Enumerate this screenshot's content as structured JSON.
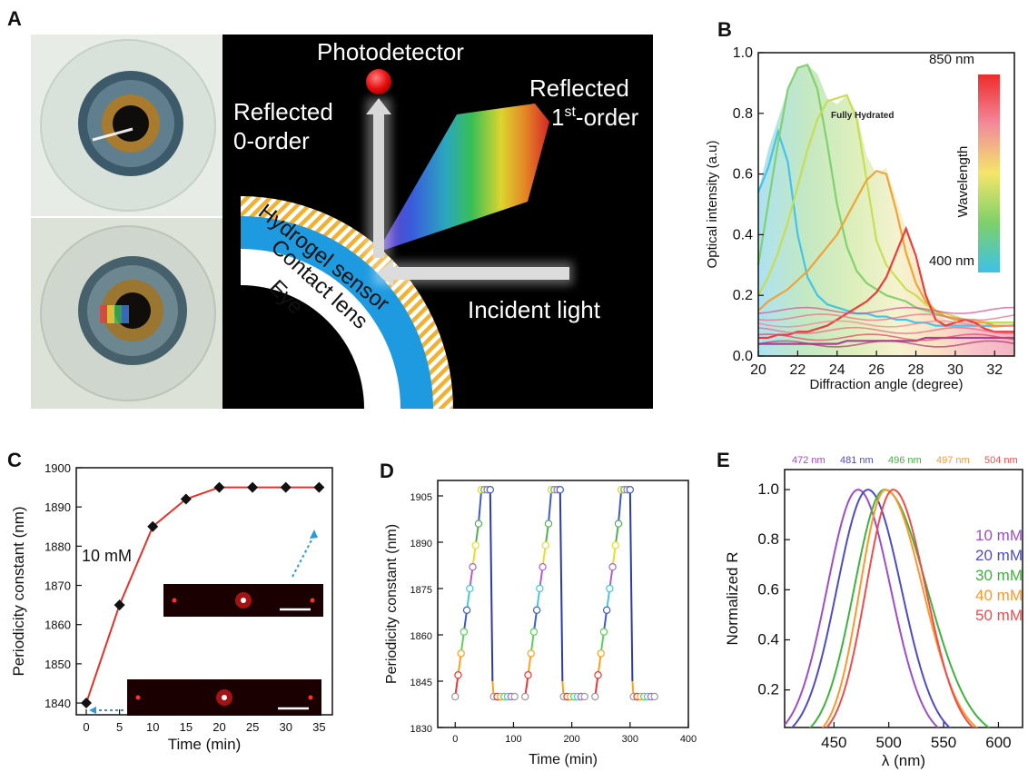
{
  "panels": {
    "a": "A",
    "b": "B",
    "c": "C",
    "d": "D",
    "e": "E"
  },
  "diagram_a": {
    "photodetector": "Photodetector",
    "reflected0_line1": "Reflected",
    "reflected0_line2": "0-order",
    "reflected1_line1": "Reflected",
    "reflected1_base": "1",
    "reflected1_sup": "st",
    "reflected1_tail": "-order",
    "incident": "Incident light",
    "hydrogel": "Hydrogel sensor",
    "contact": "Contact lens",
    "eye": "Eye"
  },
  "chart_data": [
    {
      "id": "B",
      "type": "line",
      "xlabel": "Diffraction angle (degree)",
      "ylabel": "Optical intensity (a.u)",
      "xlim": [
        20,
        33
      ],
      "ylim": [
        0.0,
        1.0
      ],
      "xticks": [
        20,
        22,
        24,
        26,
        28,
        30,
        32
      ],
      "yticks": [
        0.0,
        0.2,
        0.4,
        0.6,
        0.8,
        1.0
      ],
      "annotation": "Fully Hydrated",
      "colorbar": {
        "title": "Wavelength",
        "top_label": "850 nm",
        "bottom_label": "400 nm",
        "colors": [
          "#ef2b2b",
          "#f28a9a",
          "#f3e66a",
          "#7dd06a",
          "#3dc2e8"
        ]
      },
      "envelope": {
        "x": [
          20,
          20.5,
          21,
          21.5,
          22,
          22.5,
          23,
          23.5,
          24,
          24.5,
          25,
          25.5,
          26,
          26.5,
          27,
          27.5,
          28,
          28.5,
          29,
          29.5,
          30,
          30.5,
          31,
          31.5,
          32,
          32.5,
          33
        ],
        "y": [
          0.54,
          0.68,
          0.78,
          0.88,
          0.95,
          0.96,
          0.93,
          0.85,
          0.83,
          0.86,
          0.8,
          0.66,
          0.6,
          0.62,
          0.52,
          0.42,
          0.31,
          0.21,
          0.15,
          0.12,
          0.11,
          0.12,
          0.11,
          0.09,
          0.08,
          0.08,
          0.08
        ]
      },
      "spectra": [
        {
          "color": "#3dc2e8",
          "y": [
            0.54,
            0.62,
            0.74,
            0.64,
            0.4,
            0.26,
            0.2,
            0.17,
            0.16,
            0.15,
            0.14,
            0.14,
            0.13,
            0.13,
            0.12,
            0.12,
            0.11,
            0.11,
            0.1,
            0.1,
            0.1,
            0.1,
            0.1,
            0.1,
            0.1,
            0.1,
            0.1
          ]
        },
        {
          "color": "#7dd06a",
          "y": [
            0.3,
            0.5,
            0.7,
            0.88,
            0.95,
            0.96,
            0.88,
            0.7,
            0.5,
            0.36,
            0.28,
            0.24,
            0.22,
            0.2,
            0.19,
            0.18,
            0.16,
            0.15,
            0.14,
            0.13,
            0.12,
            0.12,
            0.12,
            0.11,
            0.11,
            0.11,
            0.11
          ]
        },
        {
          "color": "#c7dc4d",
          "y": [
            0.2,
            0.26,
            0.34,
            0.44,
            0.56,
            0.68,
            0.78,
            0.84,
            0.85,
            0.86,
            0.78,
            0.58,
            0.38,
            0.3,
            0.26,
            0.22,
            0.2,
            0.17,
            0.15,
            0.14,
            0.13,
            0.12,
            0.12,
            0.11,
            0.11,
            0.11,
            0.11
          ]
        },
        {
          "color": "#f0a030",
          "y": [
            0.15,
            0.18,
            0.2,
            0.22,
            0.25,
            0.28,
            0.32,
            0.36,
            0.4,
            0.46,
            0.52,
            0.58,
            0.61,
            0.6,
            0.48,
            0.34,
            0.24,
            0.18,
            0.15,
            0.13,
            0.12,
            0.12,
            0.11,
            0.11,
            0.1,
            0.1,
            0.1
          ]
        },
        {
          "color": "#ee3333",
          "y": [
            0.06,
            0.06,
            0.07,
            0.07,
            0.08,
            0.08,
            0.09,
            0.1,
            0.12,
            0.14,
            0.16,
            0.18,
            0.21,
            0.26,
            0.34,
            0.42,
            0.33,
            0.2,
            0.12,
            0.1,
            0.11,
            0.12,
            0.11,
            0.09,
            0.08,
            0.08,
            0.08
          ]
        },
        {
          "color": "#a23c8c",
          "y": [
            0.04,
            0.04,
            0.04,
            0.04,
            0.04,
            0.04,
            0.04,
            0.04,
            0.04,
            0.05,
            0.05,
            0.05,
            0.05,
            0.05,
            0.05,
            0.05,
            0.05,
            0.06,
            0.06,
            0.06,
            0.06,
            0.06,
            0.06,
            0.06,
            0.06,
            0.06,
            0.06
          ]
        }
      ]
    },
    {
      "id": "C",
      "type": "line",
      "xlabel": "Time (min)",
      "ylabel": "Periodicity constant (nm)",
      "xlim": [
        -1.5,
        37
      ],
      "ylim": [
        1837,
        1900
      ],
      "xticks": [
        0,
        5,
        10,
        15,
        20,
        25,
        30,
        35
      ],
      "yticks": [
        1840,
        1850,
        1860,
        1870,
        1880,
        1890,
        1900
      ],
      "annotation": "10 mM",
      "x": [
        0,
        5,
        10,
        15,
        20,
        25,
        30,
        35
      ],
      "y": [
        1840,
        1865,
        1885,
        1892,
        1895,
        1895,
        1895,
        1895
      ]
    },
    {
      "id": "D",
      "type": "line",
      "xlabel": "Time (min)",
      "ylabel": "Periodicity constant (nm)",
      "xlim": [
        -30,
        400
      ],
      "ylim": [
        1830,
        1910
      ],
      "xticks": [
        0,
        100,
        200,
        300,
        400
      ],
      "yticks": [
        1830,
        1845,
        1860,
        1875,
        1890,
        1905
      ],
      "cycles": [
        0,
        120,
        240
      ],
      "rise": {
        "x": [
          0,
          5,
          10,
          15,
          20,
          25,
          30,
          35,
          40,
          45
        ],
        "y": [
          1840,
          1847,
          1854,
          1861,
          1868,
          1875,
          1882,
          1889,
          1896,
          1907
        ],
        "colors": [
          "#9a9a9a",
          "#ee3333",
          "#ff9f20",
          "#5bd15b",
          "#3b5bd0",
          "#48c8d8",
          "#b060c8",
          "#e8e020",
          "#52b052",
          "#3b5bd0"
        ]
      },
      "top_x": [
        45,
        50,
        55,
        60
      ],
      "drop": {
        "x": [
          60,
          64,
          66
        ],
        "y": [
          1907,
          1840,
          1840
        ],
        "colors": [
          "#2c3caa",
          "#ff9f20"
        ]
      },
      "tail": {
        "x": [
          66,
          72,
          78,
          84,
          90,
          96,
          102
        ],
        "colors": [
          "#9a9a9a",
          "#ee3333",
          "#ff9f20",
          "#5bd15b",
          "#48c8d8",
          "#b060c8",
          "#9a9a9a"
        ]
      }
    },
    {
      "id": "E",
      "type": "line",
      "xlabel": "λ (nm)",
      "ylabel": "Normalized R",
      "xlim": [
        405,
        622
      ],
      "ylim": [
        0.05,
        1.08
      ],
      "xticks": [
        450,
        500,
        550,
        600
      ],
      "yticks": [
        0.2,
        0.4,
        0.6,
        0.8,
        1.0
      ],
      "series": [
        {
          "name": "10 mM",
          "peak_label": "472 nm",
          "peak": 472,
          "sigma_left": 40,
          "sigma_right": 42,
          "color": "#a04cc8"
        },
        {
          "name": "20 mM",
          "peak_label": "481 nm",
          "peak": 481,
          "sigma_left": 40,
          "sigma_right": 43,
          "color": "#4c4cc8"
        },
        {
          "name": "30 mM",
          "peak_label": "496 nm",
          "peak": 496,
          "sigma_left": 39,
          "sigma_right": 55,
          "color": "#3cb43c"
        },
        {
          "name": "40 mM",
          "peak_label": "497 nm",
          "peak": 497,
          "sigma_left": 33,
          "sigma_right": 48,
          "color": "#ff9628"
        },
        {
          "name": "50 mM",
          "peak_label": "504 nm",
          "peak": 504,
          "sigma_left": 35,
          "sigma_right": 42,
          "color": "#f04c4c"
        }
      ]
    }
  ]
}
